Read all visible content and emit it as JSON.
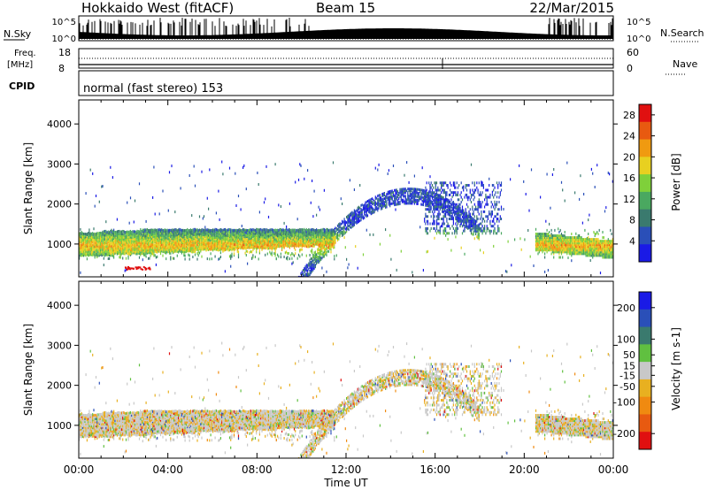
{
  "header": {
    "station": "Hokkaido West (fitACF)",
    "beam": "Beam 15",
    "date": "22/Mar/2015"
  },
  "top_strip": {
    "nsky_label": "N.Sky",
    "nsky_ticks": [
      "10^5",
      "10^0"
    ],
    "nsearch_label": "N.Search",
    "nsearch_ticks": [
      "10^5",
      "10^0"
    ],
    "freq_label_1": "Freq.",
    "freq_label_2": "[MHz]",
    "freq_ticks": [
      "18",
      "8"
    ],
    "nave_label": "Nave",
    "nave_ticks": [
      "60",
      "0"
    ],
    "cpid_label": "CPID",
    "cpid_text": "normal (fast stereo) 153"
  },
  "colors": {
    "power_scale": [
      "#1a1ae6",
      "#2a4fb8",
      "#3a7a6e",
      "#4aa860",
      "#7fd03a",
      "#e8d020",
      "#f09a10",
      "#e85a10",
      "#e01010"
    ],
    "velocity_scale": [
      "#1a1ae6",
      "#2a4fb8",
      "#3a7a6e",
      "#60c040",
      "#c8c8c8",
      "#e8b020",
      "#f08a10",
      "#e85a10",
      "#e01010"
    ]
  },
  "chart_data": [
    {
      "type": "heatmap",
      "quantity": "Power",
      "xlabel": "",
      "ylabel": "Slant Range [km]",
      "x_ticks": [
        "00:00",
        "04:00",
        "08:00",
        "12:00",
        "16:00",
        "20:00",
        "00:00"
      ],
      "y_ticks": [
        1000,
        2000,
        3000,
        4000
      ],
      "ylim": [
        180,
        4600
      ],
      "colorbar_label": "Power [dB]",
      "colorbar_ticks": [
        4,
        8,
        12,
        16,
        20,
        24,
        28
      ],
      "colorbar_range": [
        0,
        30
      ],
      "echo_bands": [
        {
          "start_hour": 0.0,
          "end_hour": 11.5,
          "range_low": 700,
          "range_high": 1300
        },
        {
          "start_hour": 12.5,
          "end_hour": 18.0,
          "range_low": 1400,
          "range_high": 2500
        },
        {
          "start_hour": 20.5,
          "end_hour": 24.0,
          "range_low": 800,
          "range_high": 1300
        }
      ]
    },
    {
      "type": "heatmap",
      "quantity": "Velocity",
      "xlabel": "Time UT",
      "ylabel": "Slant Range [km]",
      "x_ticks": [
        "00:00",
        "04:00",
        "08:00",
        "12:00",
        "16:00",
        "20:00",
        "00:00"
      ],
      "y_ticks": [
        1000,
        2000,
        3000,
        4000
      ],
      "ylim": [
        180,
        4600
      ],
      "colorbar_label": "Velocity [m s-1]",
      "colorbar_ticks": [
        200,
        100,
        50,
        15,
        -15,
        -50,
        -100,
        -200
      ],
      "colorbar_range": [
        -250,
        250
      ]
    }
  ]
}
